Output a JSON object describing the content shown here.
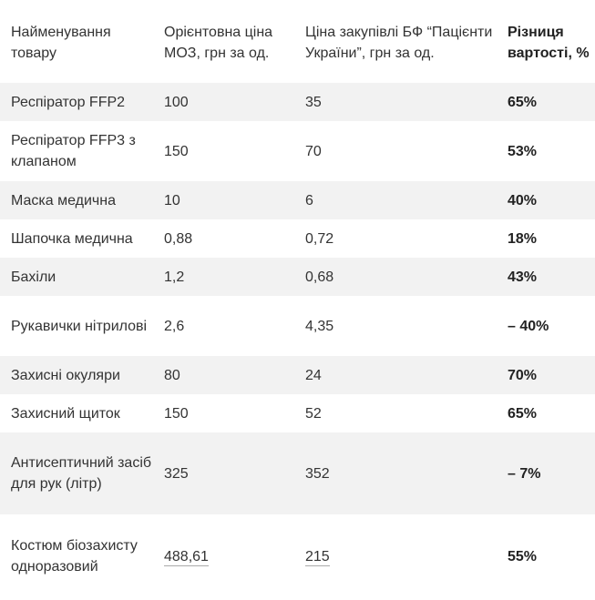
{
  "headers": {
    "name": "Найменування товару",
    "moz_price": "Орієнтовна ціна МОЗ, грн за од.",
    "bf_price": "Ціна закупівлі БФ “Пацієнти України”, грн за од.",
    "difference": "Різниця вартості, %"
  },
  "rows": [
    {
      "name": "Респіратор FFP2",
      "moz": "100",
      "bf": "35",
      "diff": "65%"
    },
    {
      "name": "Респіратор FFP3 з клапаном",
      "moz": "150",
      "bf": "70",
      "diff": "53%"
    },
    {
      "name": "Маска медична",
      "moz": "10",
      "bf": "6",
      "diff": "40%"
    },
    {
      "name": "Шапочка медична",
      "moz": "0,88",
      "bf": "0,72",
      "diff": "18%"
    },
    {
      "name": "Бахіли",
      "moz": "1,2",
      "bf": "0,68",
      "diff": "43%"
    },
    {
      "name": "Рукавички нітрилові",
      "moz": "2,6",
      "bf": "4,35",
      "diff": "– 40%"
    },
    {
      "name": "Захисні окуляри",
      "moz": "80",
      "bf": "24",
      "diff": "70%"
    },
    {
      "name": "Захисний щиток",
      "moz": "150",
      "bf": "52",
      "diff": "65%"
    },
    {
      "name": "Антисептичний засіб для рук (літр)",
      "moz": "325",
      "bf": "352",
      "diff": "– 7%"
    },
    {
      "name": "Костюм біозахисту одноразовий",
      "moz": "488,61",
      "bf": "215",
      "diff": "55%"
    }
  ]
}
